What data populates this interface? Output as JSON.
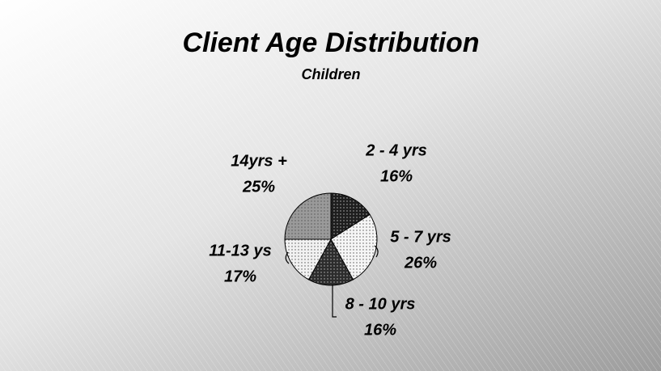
{
  "chart_data": {
    "type": "pie",
    "title": "Client Age Distribution",
    "subtitle": "Children",
    "categories": [
      "2 - 4 yrs",
      "5 - 7 yrs",
      "8 - 10 yrs",
      "11-13 ys",
      "14yrs +"
    ],
    "values": [
      16,
      26,
      16,
      17,
      25
    ],
    "value_labels": [
      "16%",
      "26%",
      "16%",
      "17%",
      "25%"
    ],
    "colors": [
      "#1e1e1e",
      "#f6f6f6",
      "#2c2c2c",
      "#f2f2f2",
      "#9a9a9a"
    ]
  }
}
